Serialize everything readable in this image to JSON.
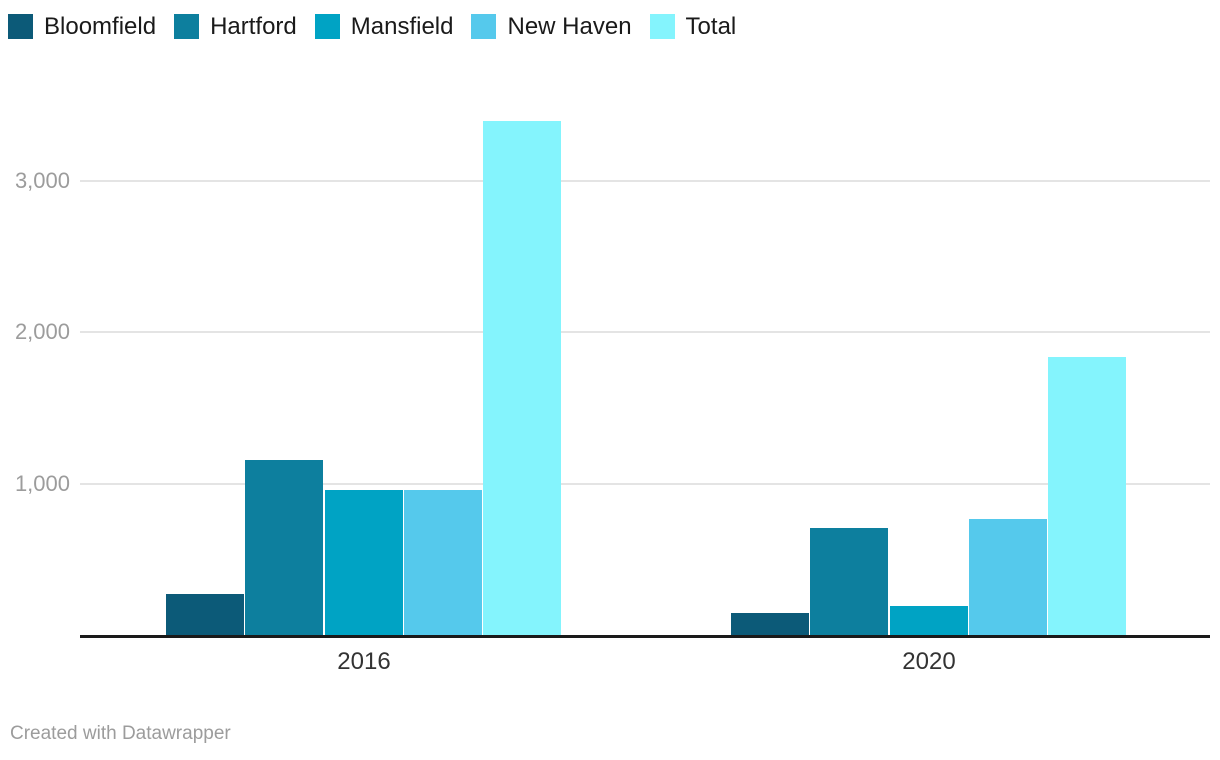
{
  "chart_data": {
    "type": "bar",
    "title": "",
    "xlabel": "",
    "ylabel": "",
    "categories": [
      "2016",
      "2020"
    ],
    "series": [
      {
        "name": "Bloomfield",
        "color": "#0c5a78",
        "values": [
          270,
          145
        ]
      },
      {
        "name": "Hartford",
        "color": "#0d7f9e",
        "values": [
          1155,
          705
        ]
      },
      {
        "name": "Mansfield",
        "color": "#00a3c4",
        "values": [
          960,
          190
        ]
      },
      {
        "name": "New Haven",
        "color": "#55c9ec",
        "values": [
          955,
          765
        ]
      },
      {
        "name": "Total",
        "color": "#84f4fd",
        "values": [
          3390,
          1835
        ]
      }
    ],
    "yticks": [
      {
        "value": 1000,
        "label": "1,000"
      },
      {
        "value": 2000,
        "label": "2,000"
      },
      {
        "value": 3000,
        "label": "3,000"
      }
    ],
    "ylim": [
      0,
      3500
    ],
    "grid": true,
    "legend_position": "top"
  },
  "colors": {
    "axis_line": "#1a1a1a",
    "gridline": "#e4e4e4",
    "tick_label": "#9c9c9c",
    "category_label": "#333333",
    "legend_label": "#1a1a1a",
    "footer_text": "#9c9c9c"
  },
  "footer": {
    "attribution": "Created with Datawrapper"
  }
}
